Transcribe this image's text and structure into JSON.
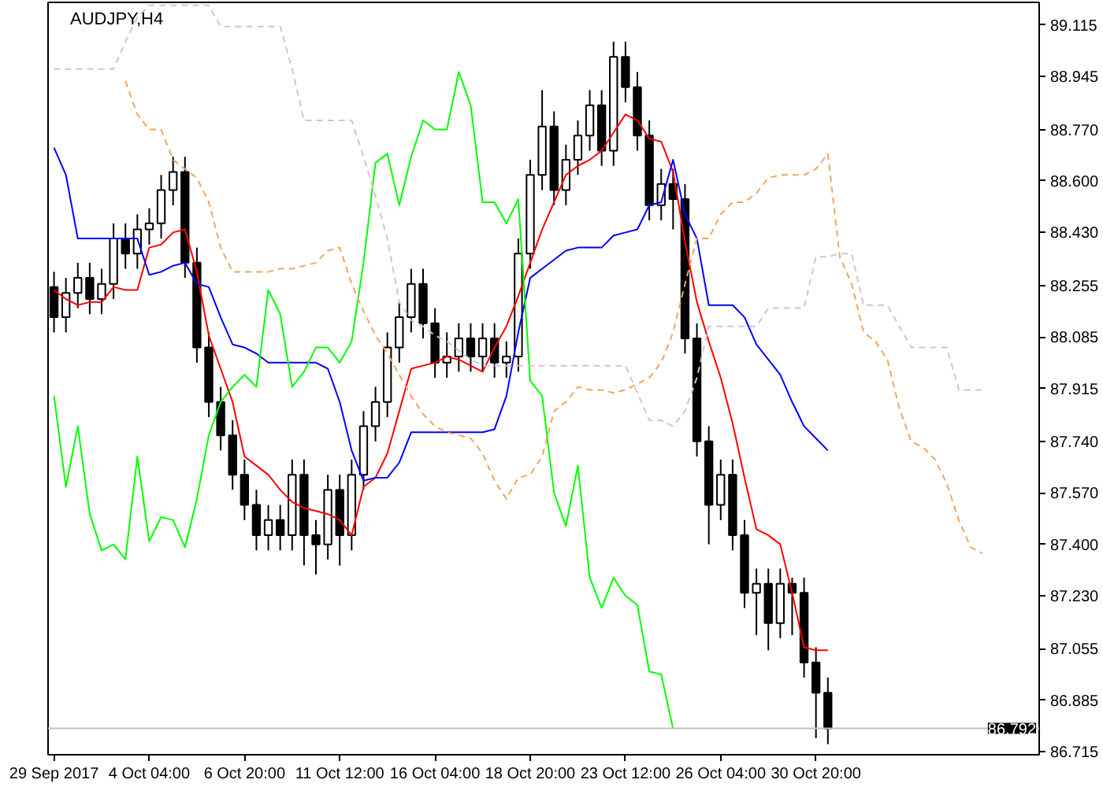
{
  "chart_data": {
    "type": "candlestick",
    "title": "AUDJPY,H4",
    "categories": [
      "29 Sep 2017",
      null,
      null,
      null,
      null,
      null,
      null,
      null,
      "4 Oct 04:00",
      null,
      null,
      null,
      null,
      null,
      null,
      null,
      "6 Oct 20:00",
      null,
      null,
      null,
      null,
      null,
      null,
      null,
      "11 Oct 12:00",
      null,
      null,
      null,
      null,
      null,
      null,
      null,
      "16 Oct 04:00",
      null,
      null,
      null,
      null,
      null,
      null,
      null,
      "18 Oct 20:00",
      null,
      null,
      null,
      null,
      null,
      null,
      null,
      "23 Oct 12:00",
      null,
      null,
      null,
      null,
      null,
      null,
      null,
      "26 Oct 04:00",
      null,
      null,
      null,
      null,
      null,
      null,
      null,
      "30 Oct 20:00",
      null,
      null,
      null,
      null,
      null,
      null,
      null,
      null,
      null,
      null,
      null,
      null,
      null,
      null
    ],
    "ohlc": [
      [
        88.25,
        88.3,
        88.1,
        88.15
      ],
      [
        88.15,
        88.28,
        88.1,
        88.23
      ],
      [
        88.23,
        88.33,
        88.18,
        88.28
      ],
      [
        88.28,
        88.33,
        88.16,
        88.21
      ],
      [
        88.21,
        88.31,
        88.16,
        88.26
      ],
      [
        88.26,
        88.46,
        88.21,
        88.41
      ],
      [
        88.41,
        88.46,
        88.31,
        88.36
      ],
      [
        88.36,
        88.49,
        88.31,
        88.44
      ],
      [
        88.44,
        88.51,
        88.39,
        88.46
      ],
      [
        88.46,
        88.62,
        88.41,
        88.57
      ],
      [
        88.57,
        88.68,
        88.52,
        88.63
      ],
      [
        88.63,
        88.68,
        88.28,
        88.33
      ],
      [
        88.33,
        88.38,
        88.0,
        88.05
      ],
      [
        88.05,
        88.1,
        87.82,
        87.87
      ],
      [
        87.87,
        87.92,
        87.71,
        87.76
      ],
      [
        87.76,
        87.81,
        87.58,
        87.63
      ],
      [
        87.63,
        87.68,
        87.48,
        87.53
      ],
      [
        87.53,
        87.58,
        87.38,
        87.43
      ],
      [
        87.43,
        87.53,
        87.38,
        87.48
      ],
      [
        87.48,
        87.53,
        87.38,
        87.43
      ],
      [
        87.43,
        87.68,
        87.38,
        87.63
      ],
      [
        87.63,
        87.68,
        87.33,
        87.43
      ],
      [
        87.43,
        87.48,
        87.3,
        87.4
      ],
      [
        87.4,
        87.63,
        87.35,
        87.58
      ],
      [
        87.58,
        87.63,
        87.33,
        87.43
      ],
      [
        87.43,
        87.68,
        87.38,
        87.63
      ],
      [
        87.63,
        87.84,
        87.58,
        87.79
      ],
      [
        87.79,
        87.92,
        87.74,
        87.87
      ],
      [
        87.87,
        88.1,
        87.82,
        88.05
      ],
      [
        88.05,
        88.2,
        88.0,
        88.15
      ],
      [
        88.15,
        88.31,
        88.1,
        88.26
      ],
      [
        88.26,
        88.31,
        88.08,
        88.13
      ],
      [
        88.13,
        88.18,
        87.95,
        88.0
      ],
      [
        88.0,
        88.1,
        87.95,
        88.02
      ],
      [
        88.02,
        88.13,
        87.97,
        88.08
      ],
      [
        88.08,
        88.13,
        87.97,
        88.02
      ],
      [
        88.02,
        88.13,
        87.97,
        88.08
      ],
      [
        88.08,
        88.13,
        87.95,
        88.0
      ],
      [
        88.0,
        88.07,
        87.95,
        88.02
      ],
      [
        88.02,
        88.41,
        87.97,
        88.36
      ],
      [
        88.36,
        88.67,
        88.31,
        88.62
      ],
      [
        88.62,
        88.9,
        88.57,
        88.78
      ],
      [
        88.78,
        88.83,
        88.52,
        88.57
      ],
      [
        88.57,
        88.72,
        88.52,
        88.67
      ],
      [
        88.67,
        88.8,
        88.62,
        88.75
      ],
      [
        88.75,
        88.9,
        88.7,
        88.85
      ],
      [
        88.85,
        88.9,
        88.65,
        88.7
      ],
      [
        88.7,
        89.06,
        88.65,
        89.01
      ],
      [
        89.01,
        89.06,
        88.86,
        88.91
      ],
      [
        88.91,
        88.96,
        88.7,
        88.75
      ],
      [
        88.75,
        88.8,
        88.47,
        88.52
      ],
      [
        88.52,
        88.64,
        88.47,
        88.59
      ],
      [
        88.59,
        88.64,
        88.44,
        88.54
      ],
      [
        88.54,
        88.59,
        88.03,
        88.08
      ],
      [
        88.08,
        88.13,
        87.69,
        87.74
      ],
      [
        87.74,
        87.79,
        87.4,
        87.53
      ],
      [
        87.53,
        87.68,
        87.48,
        87.63
      ],
      [
        87.63,
        87.68,
        87.38,
        87.43
      ],
      [
        87.43,
        87.48,
        87.19,
        87.24
      ],
      [
        87.24,
        87.32,
        87.1,
        87.27
      ],
      [
        87.27,
        87.32,
        87.05,
        87.14
      ],
      [
        87.14,
        87.32,
        87.09,
        87.27
      ],
      [
        87.27,
        87.29,
        87.1,
        87.24
      ],
      [
        87.24,
        87.29,
        86.96,
        87.01
      ],
      [
        87.01,
        87.06,
        86.76,
        86.91
      ],
      [
        86.91,
        86.96,
        86.74,
        86.792
      ],
      null,
      null,
      null,
      null,
      null,
      null,
      null,
      null,
      null,
      null,
      null,
      null,
      null
    ],
    "series": [
      {
        "type": "line",
        "color": "#ff0000",
        "values": [
          88.24,
          88.21,
          88.19,
          88.2,
          88.2,
          88.25,
          88.24,
          88.24,
          88.38,
          88.39,
          88.43,
          88.44,
          88.3,
          88.09,
          87.98,
          87.87,
          87.69,
          87.66,
          87.63,
          87.58,
          87.54,
          87.52,
          87.51,
          87.5,
          87.48,
          87.43,
          87.59,
          87.62,
          87.7,
          87.84,
          87.98,
          87.99,
          88.0,
          88.02,
          88.01,
          87.99,
          87.97,
          88.05,
          88.12,
          88.22,
          88.33,
          88.44,
          88.53,
          88.62,
          88.65,
          88.67,
          88.7,
          88.76,
          88.82,
          88.8,
          88.74,
          88.73,
          88.63,
          88.4,
          88.2,
          88.07,
          87.95,
          87.8,
          87.62,
          87.45,
          87.43,
          87.4,
          87.24,
          87.06,
          87.05,
          87.05,
          null,
          null,
          null,
          null,
          null,
          null,
          null,
          null,
          null,
          null,
          null,
          null,
          null
        ]
      },
      {
        "type": "line",
        "color": "#0000ff",
        "values": [
          88.71,
          88.62,
          88.41,
          88.41,
          88.41,
          88.41,
          88.41,
          88.41,
          88.29,
          88.3,
          88.32,
          88.33,
          88.26,
          88.25,
          88.15,
          88.06,
          88.05,
          88.03,
          88.0,
          88.0,
          88.0,
          88.0,
          88.0,
          87.98,
          87.87,
          87.71,
          87.61,
          87.62,
          87.62,
          87.67,
          87.77,
          87.77,
          87.77,
          87.77,
          87.77,
          87.77,
          87.77,
          87.78,
          87.89,
          88.1,
          88.28,
          88.31,
          88.34,
          88.37,
          88.38,
          88.38,
          88.38,
          88.42,
          88.43,
          88.44,
          88.52,
          88.53,
          88.67,
          88.49,
          88.41,
          88.19,
          88.19,
          88.19,
          88.15,
          88.06,
          88.01,
          87.96,
          87.87,
          87.79,
          87.75,
          87.71,
          null,
          null,
          null,
          null,
          null,
          null,
          null,
          null,
          null,
          null,
          null,
          null,
          null
        ]
      },
      {
        "type": "line",
        "color": "#00ff00",
        "values": [
          87.89,
          87.59,
          87.79,
          87.5,
          87.38,
          87.4,
          87.35,
          87.69,
          87.41,
          87.49,
          87.48,
          87.39,
          87.55,
          87.76,
          87.87,
          87.92,
          87.96,
          87.92,
          88.24,
          88.16,
          87.92,
          87.97,
          88.05,
          88.05,
          88.0,
          88.07,
          88.33,
          88.66,
          88.69,
          88.52,
          88.68,
          88.8,
          88.77,
          88.77,
          88.96,
          88.85,
          88.53,
          88.53,
          88.46,
          88.54,
          87.94,
          87.89,
          87.57,
          87.46,
          87.66,
          87.29,
          87.19,
          87.29,
          87.23,
          87.2,
          86.98,
          86.97,
          86.79,
          null,
          null,
          null,
          null,
          null,
          null,
          null,
          null,
          null,
          null,
          null,
          null,
          null,
          null,
          null,
          null,
          null,
          null,
          null,
          null,
          null,
          null,
          null,
          null,
          null,
          null
        ]
      },
      {
        "type": "line",
        "color": "#f4a460",
        "line_style": "dashed",
        "values": [
          null,
          null,
          null,
          null,
          null,
          null,
          88.93,
          88.82,
          88.77,
          88.77,
          88.67,
          88.64,
          88.61,
          88.53,
          88.38,
          88.3,
          88.3,
          88.3,
          88.3,
          88.31,
          88.31,
          88.32,
          88.33,
          88.37,
          88.38,
          88.26,
          88.17,
          88.09,
          88.03,
          87.96,
          87.89,
          87.83,
          87.79,
          87.77,
          87.76,
          87.75,
          87.7,
          87.61,
          87.55,
          87.62,
          87.63,
          87.69,
          87.84,
          87.87,
          87.92,
          87.91,
          87.91,
          87.9,
          87.91,
          87.93,
          87.95,
          88.0,
          88.1,
          88.26,
          88.41,
          88.41,
          88.49,
          88.53,
          88.53,
          88.56,
          88.61,
          88.62,
          88.62,
          88.62,
          88.64,
          88.69,
          88.35,
          88.26,
          88.1,
          88.07,
          88.01,
          87.85,
          87.74,
          87.72,
          87.68,
          87.6,
          87.48,
          87.39,
          87.37
        ]
      },
      {
        "type": "line",
        "color": "#d8bfd8",
        "line_style": "dashed",
        "values": [
          88.97,
          88.97,
          88.97,
          88.97,
          88.97,
          88.97,
          89.06,
          89.14,
          89.18,
          89.18,
          89.18,
          89.18,
          89.18,
          89.18,
          89.11,
          89.11,
          89.11,
          89.11,
          89.11,
          89.11,
          88.97,
          88.8,
          88.8,
          88.8,
          88.8,
          88.8,
          88.68,
          88.55,
          88.41,
          88.2,
          88.14,
          88.12,
          88.09,
          88.07,
          88.04,
          88.01,
          87.99,
          87.99,
          87.99,
          87.99,
          87.99,
          87.99,
          87.99,
          87.99,
          87.99,
          87.99,
          87.99,
          87.99,
          87.99,
          87.9,
          87.81,
          87.81,
          87.79,
          87.84,
          87.95,
          88.12,
          88.12,
          88.12,
          88.12,
          88.12,
          88.18,
          88.18,
          88.18,
          88.18,
          88.35,
          88.35,
          88.36,
          88.36,
          88.19,
          88.19,
          88.19,
          88.12,
          88.05,
          88.05,
          88.05,
          88.05,
          87.91,
          87.91,
          87.91
        ]
      }
    ],
    "ylim": [
      86.705,
      89.19
    ],
    "yticks": [
      89.115,
      88.945,
      {
        "value": 88.77,
        "label": "88.770"
      },
      {
        "value": 88.6,
        "label": "88.600"
      },
      {
        "value": 88.43,
        "label": "88.430"
      },
      88.255,
      88.085,
      87.915,
      {
        "value": 87.74,
        "label": "87.740"
      },
      {
        "value": 87.57,
        "label": "87.570"
      },
      {
        "value": 87.4,
        "label": "87.400"
      },
      {
        "value": 87.23,
        "label": "87.230"
      },
      87.055,
      86.885,
      86.715
    ],
    "ref_lines": [
      {
        "axis": "y",
        "value": 86.792,
        "label": "86.792",
        "color": "#c0c0c0"
      }
    ]
  }
}
